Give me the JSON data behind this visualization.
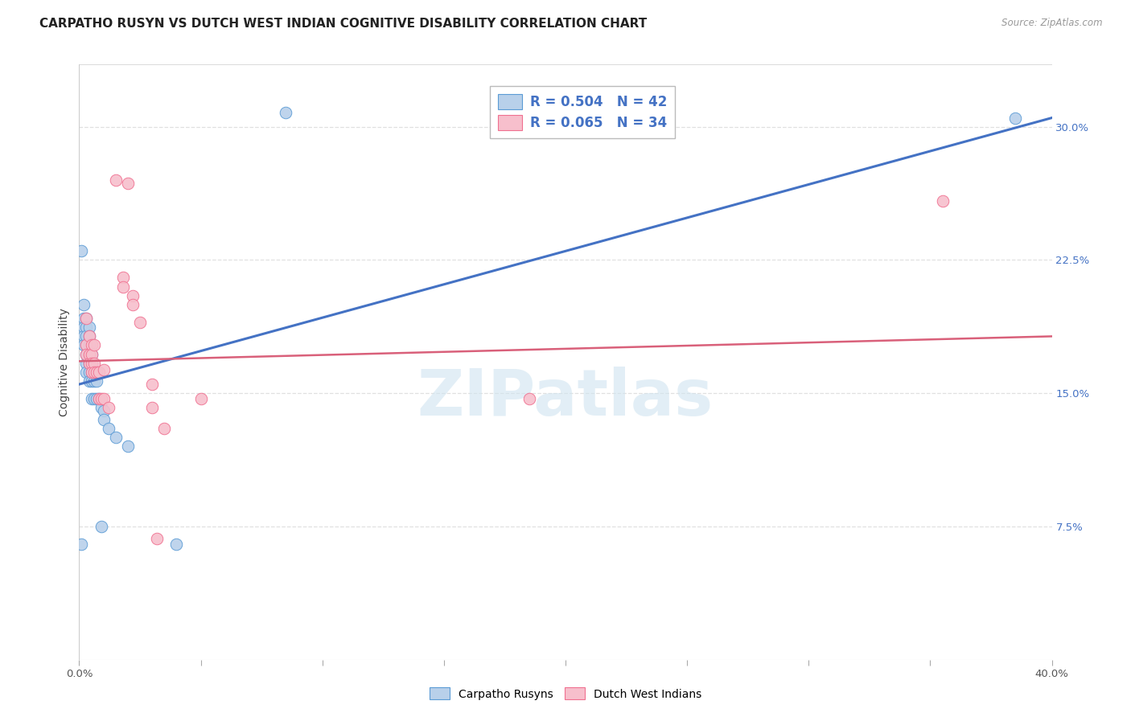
{
  "title": "CARPATHO RUSYN VS DUTCH WEST INDIAN COGNITIVE DISABILITY CORRELATION CHART",
  "source": "Source: ZipAtlas.com",
  "ylabel": "Cognitive Disability",
  "xlim": [
    0.0,
    0.4
  ],
  "ylim": [
    0.0,
    0.335
  ],
  "ytick_positions": [
    0.075,
    0.15,
    0.225,
    0.3
  ],
  "ytick_labels": [
    "7.5%",
    "15.0%",
    "22.5%",
    "30.0%"
  ],
  "r_blue": 0.504,
  "n_blue": 42,
  "r_pink": 0.065,
  "n_pink": 34,
  "blue_fill": "#b8d0ea",
  "pink_fill": "#f7bfcc",
  "blue_edge": "#5b9bd5",
  "pink_edge": "#f07090",
  "line_blue": "#4472c4",
  "line_pink": "#d9607a",
  "blue_line_pts": [
    [
      0.0,
      0.155
    ],
    [
      0.4,
      0.305
    ]
  ],
  "pink_line_pts": [
    [
      0.0,
      0.168
    ],
    [
      0.4,
      0.182
    ]
  ],
  "blue_scatter": [
    [
      0.001,
      0.23
    ],
    [
      0.002,
      0.2
    ],
    [
      0.002,
      0.192
    ],
    [
      0.002,
      0.187
    ],
    [
      0.002,
      0.182
    ],
    [
      0.002,
      0.177
    ],
    [
      0.003,
      0.192
    ],
    [
      0.003,
      0.187
    ],
    [
      0.003,
      0.182
    ],
    [
      0.003,
      0.177
    ],
    [
      0.003,
      0.172
    ],
    [
      0.003,
      0.167
    ],
    [
      0.003,
      0.162
    ],
    [
      0.004,
      0.187
    ],
    [
      0.004,
      0.182
    ],
    [
      0.004,
      0.177
    ],
    [
      0.004,
      0.172
    ],
    [
      0.004,
      0.167
    ],
    [
      0.004,
      0.162
    ],
    [
      0.004,
      0.157
    ],
    [
      0.005,
      0.172
    ],
    [
      0.005,
      0.167
    ],
    [
      0.005,
      0.162
    ],
    [
      0.005,
      0.157
    ],
    [
      0.005,
      0.147
    ],
    [
      0.006,
      0.162
    ],
    [
      0.006,
      0.157
    ],
    [
      0.006,
      0.147
    ],
    [
      0.007,
      0.157
    ],
    [
      0.007,
      0.147
    ],
    [
      0.008,
      0.147
    ],
    [
      0.009,
      0.142
    ],
    [
      0.009,
      0.075
    ],
    [
      0.01,
      0.14
    ],
    [
      0.01,
      0.135
    ],
    [
      0.012,
      0.13
    ],
    [
      0.015,
      0.125
    ],
    [
      0.02,
      0.12
    ],
    [
      0.04,
      0.065
    ],
    [
      0.001,
      0.065
    ],
    [
      0.085,
      0.308
    ],
    [
      0.385,
      0.305
    ]
  ],
  "pink_scatter": [
    [
      0.003,
      0.192
    ],
    [
      0.003,
      0.177
    ],
    [
      0.003,
      0.172
    ],
    [
      0.004,
      0.182
    ],
    [
      0.004,
      0.172
    ],
    [
      0.004,
      0.167
    ],
    [
      0.005,
      0.177
    ],
    [
      0.005,
      0.172
    ],
    [
      0.005,
      0.167
    ],
    [
      0.005,
      0.162
    ],
    [
      0.006,
      0.177
    ],
    [
      0.006,
      0.167
    ],
    [
      0.006,
      0.162
    ],
    [
      0.007,
      0.162
    ],
    [
      0.008,
      0.162
    ],
    [
      0.008,
      0.147
    ],
    [
      0.009,
      0.147
    ],
    [
      0.01,
      0.163
    ],
    [
      0.01,
      0.147
    ],
    [
      0.012,
      0.142
    ],
    [
      0.015,
      0.27
    ],
    [
      0.018,
      0.215
    ],
    [
      0.018,
      0.21
    ],
    [
      0.02,
      0.268
    ],
    [
      0.022,
      0.205
    ],
    [
      0.022,
      0.2
    ],
    [
      0.025,
      0.19
    ],
    [
      0.03,
      0.155
    ],
    [
      0.03,
      0.142
    ],
    [
      0.035,
      0.13
    ],
    [
      0.032,
      0.068
    ],
    [
      0.05,
      0.147
    ],
    [
      0.185,
      0.147
    ],
    [
      0.355,
      0.258
    ]
  ],
  "watermark_text": "ZIPatlas",
  "background_color": "#ffffff",
  "grid_color": "#e0e0e0",
  "title_fontsize": 11,
  "axis_label_fontsize": 10,
  "tick_fontsize": 9.5,
  "legend_fontsize": 12
}
